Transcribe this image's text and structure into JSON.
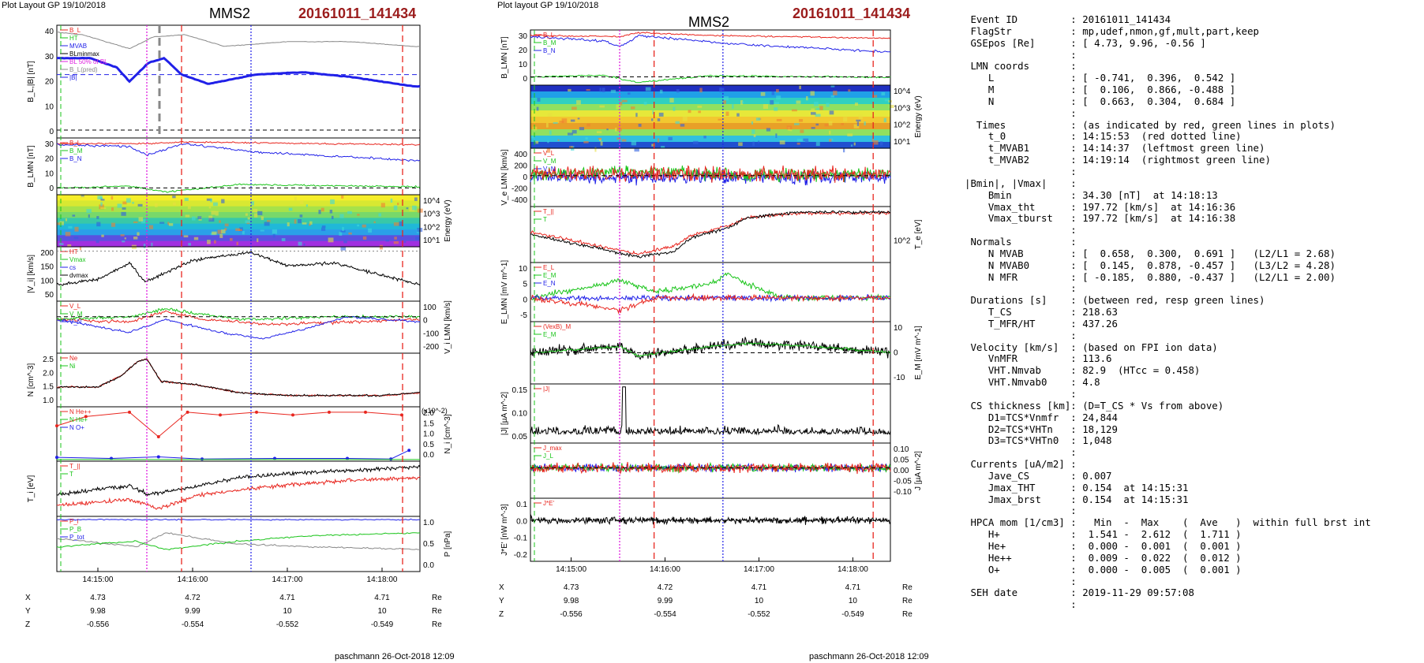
{
  "left": {
    "header": "Plot Layout GP 19/10/2018",
    "title": "MMS2",
    "event": "20161011_141434",
    "footer": "paschmann 26-Oct-2018 12:09",
    "panels": [
      {
        "ylabel": "B_L,|B| [nT]",
        "ticks": [
          "40",
          "30",
          "20",
          "10",
          "0"
        ],
        "legend": [
          "B_L",
          "HT",
          "MVAB",
          "BLminmax",
          "BL 50% of BL",
          "B_L(pred)",
          "|B|"
        ]
      },
      {
        "ylabel": "B_LMN [nT]",
        "ticks": [
          "30",
          "20",
          "10",
          "0"
        ],
        "legend": [
          "B_L",
          "B_M",
          "B_N"
        ]
      },
      {
        "ylabel": "Energy (eV)",
        "ticks": [
          "10^4",
          "10^3",
          "10^2",
          "10^1"
        ],
        "legend": []
      },
      {
        "ylabel": "|V_i| [km/s]",
        "ticks": [
          "200",
          "150",
          "100",
          "50"
        ],
        "legend": [
          "HT",
          "Vmax",
          "cs",
          "dvmax"
        ]
      },
      {
        "ylabel": "V_i LMN [km/s]",
        "ticks": [
          "100",
          "0",
          "-100",
          "-200"
        ],
        "legend": [
          "V_L",
          "V_M",
          "V_N"
        ]
      },
      {
        "ylabel": "N [cm^-3]",
        "ticks": [
          "2.5",
          "2.0",
          "1.5",
          "1.0"
        ],
        "legend": [
          "Ne",
          "Ni"
        ]
      },
      {
        "ylabel": "N_i [cm^-3]",
        "ticks": [
          "2.0",
          "1.5",
          "1.0",
          "0.5",
          "0.0"
        ],
        "legend": [
          "N He++",
          "N He+",
          "N O+"
        ],
        "exp": "(x10^-2)"
      },
      {
        "ylabel": "T_i [eV]",
        "ticks": [],
        "legend": [
          "T_||",
          "T"
        ]
      },
      {
        "ylabel": "P [nPa]",
        "ticks": [
          "1.0",
          "0.5",
          "0.0"
        ],
        "legend": [
          "P_i",
          "P_B",
          "P_tot"
        ]
      }
    ],
    "time_ticks": [
      "14:15:00",
      "14:16:00",
      "14:17:00",
      "14:18:00"
    ],
    "pos_table": {
      "rows": [
        {
          "label": "X",
          "values": [
            "4.73",
            "4.72",
            "4.71",
            "4.71"
          ],
          "unit": "Re"
        },
        {
          "label": "Y",
          "values": [
            "9.98",
            "9.99",
            "10",
            "10"
          ],
          "unit": "Re"
        },
        {
          "label": "Z",
          "values": [
            "-0.556",
            "-0.554",
            "-0.552",
            "-0.549"
          ],
          "unit": "Re"
        }
      ]
    }
  },
  "right": {
    "header": "Plot layout GP 19/10/2018",
    "title": "MMS2",
    "event": "20161011_141434",
    "footer": "paschmann 26-Oct-2018 12:09",
    "panels": [
      {
        "ylabel": "B_LMN [nT]",
        "ticks": [
          "30",
          "20",
          "10",
          "0"
        ],
        "legend": [
          "B_L",
          "B_M",
          "B_N"
        ]
      },
      {
        "ylabel": "Energy (eV)",
        "ticks": [
          "10^4",
          "10^3",
          "10^2",
          "10^1"
        ],
        "legend": []
      },
      {
        "ylabel": "V_e LMN [km/s]",
        "ticks": [
          "400",
          "200",
          "0",
          "-200",
          "-400"
        ],
        "legend": [
          "V_L",
          "V_M",
          "V_N"
        ]
      },
      {
        "ylabel": "T_e [eV]",
        "ticks": [
          "10^2"
        ],
        "legend": [
          "T_||",
          "T"
        ]
      },
      {
        "ylabel": "E_LMN [mV m^-1]",
        "ticks": [
          "10",
          "5",
          "0",
          "-5"
        ],
        "legend": [
          "E_L",
          "E_M",
          "E_N"
        ]
      },
      {
        "ylabel": "E_M [mV m^-1]",
        "ticks": [
          "10",
          "0",
          "-10"
        ],
        "legend": [
          "(VexB)_M",
          "E_M"
        ]
      },
      {
        "ylabel": "|J| [µA m^-2]",
        "ticks": [
          "0.15",
          "0.10",
          "0.05"
        ],
        "legend": [
          "|J|"
        ]
      },
      {
        "ylabel": "J [µA m^-2]",
        "ticks": [
          "0.10",
          "0.05",
          "0.00",
          "-0.05",
          "-0.10"
        ],
        "legend": [
          "J_max",
          "J_L"
        ]
      },
      {
        "ylabel": "J*E' [nW m^-3]",
        "ticks": [
          "0.1",
          "0.0",
          "-0.1",
          "-0.2"
        ],
        "legend": [
          "J*E'"
        ]
      }
    ],
    "time_ticks": [
      "14:15:00",
      "14:16:00",
      "14:17:00",
      "14:18:00"
    ],
    "pos_table": {
      "rows": [
        {
          "label": "X",
          "values": [
            "4.73",
            "4.72",
            "4.71",
            "4.71"
          ],
          "unit": "Re"
        },
        {
          "label": "Y",
          "values": [
            "9.98",
            "9.99",
            "10",
            "10"
          ],
          "unit": "Re"
        },
        {
          "label": "Z",
          "values": [
            "-0.556",
            "-0.554",
            "-0.552",
            "-0.549"
          ],
          "unit": "Re"
        }
      ]
    }
  },
  "info_lines": [
    " Event ID         : 20161011_141434",
    " FlagStr          : mp,udef,nmon,gf,mult,part,keep",
    " GSEpos [Re]      : [ 4.73, 9.96, -0.56 ]",
    "                  :",
    " LMN coords       :",
    "    L             : [ -0.741,  0.396,  0.542 ]",
    "    M             : [  0.106,  0.866, -0.488 ]",
    "    N             : [  0.663,  0.304,  0.684 ]",
    "                  :",
    "  Times           : (as indicated by red, green lines in plots)",
    "    t_0           : 14:15:53  (red dotted line)",
    "    t_MVAB1       : 14:14:37  (leftmost green line)",
    "    t_MVAB2       : 14:19:14  (rightmost green line)",
    "                  :",
    "|Bmin|, |Vmax|    :",
    "    Bmin          : 34.30 [nT]  at 14:18:13",
    "    Vmax_tht      : 197.72 [km/s]  at 14:16:36",
    "    Vmax_tburst   : 197.72 [km/s]  at 14:16:38",
    "                  :",
    " Normals          :",
    "    N MVAB        : [  0.658,  0.300,  0.691 ]   (L2/L1 = 2.68)",
    "    N MVAB0       : [  0.145,  0.878, -0.457 ]   (L3/L2 = 4.28)",
    "    N MFR         : [ -0.185,  0.880, -0.437 ]   (L2/L1 = 2.00)",
    "                  :",
    " Durations [s]    : (between red, resp green lines)",
    "    T_CS          : 218.63",
    "    T_MFR/HT      : 437.26",
    "                  :",
    " Velocity [km/s]  : (based on FPI ion data)",
    "    VnMFR         : 113.6",
    "    VHT.Nmvab     : 82.9  (HTcc = 0.458)",
    "    VHT.Nmvab0    : 4.8",
    "                  :",
    " CS thickness [km]: (D=T_CS * Vs from above)",
    "    D1=TCS*Vnmfr  : 24,844",
    "    D2=TCS*VHTn   : 18,129",
    "    D3=TCS*VHTn0  : 1,048",
    "                  :",
    " Currents [uA/m2] :",
    "    Jave_CS       : 0.007",
    "    Jmax_THT      : 0.154  at 14:15:31",
    "    Jmax_brst     : 0.154  at 14:15:31",
    "                  :",
    " HPCA mom [1/cm3] :   Min  -  Max    (  Ave   )  within full brst int",
    "    H+            :  1.541 -  2.612  (  1.711 )",
    "    He+           :  0.000 -  0.001  (  0.001 )",
    "    He++          :  0.009 -  0.022  (  0.012 )",
    "    O+            :  0.000 -  0.005  (  0.001 )",
    "                  :",
    " SEH date         : 2019-11-29 09:57:08",
    "                  :"
  ],
  "colors": {
    "red": "#e8261f",
    "green": "#19c419",
    "blue": "#2020e8",
    "black": "#000000",
    "magenta": "#e020e0",
    "gray": "#888888",
    "eventRed": "#9b1c1c"
  },
  "chart_data": [
    {
      "type": "line",
      "title": "MMS2",
      "xlabel": "",
      "x_ticks": [
        "14:15:00",
        "14:16:00",
        "14:17:00",
        "14:18:00"
      ],
      "time_start": "14:14:34",
      "time_end": "14:18:24",
      "markers": {
        "t_0": "14:15:53",
        "magenta_dotted": "14:15:31",
        "blue_dotted": "14:16:37",
        "right_red_dashed": "14:18:13"
      },
      "series": [
        {
          "name": "|B|",
          "panel": 0,
          "times": [
            "14:14:34",
            "14:14:50",
            "14:15:10",
            "14:15:20",
            "14:15:35",
            "14:15:55",
            "14:16:20",
            "14:17:00",
            "14:17:40",
            "14:18:20"
          ],
          "values": [
            42,
            41,
            37,
            35,
            40,
            41,
            36,
            38,
            38,
            36
          ]
        },
        {
          "name": "B_L",
          "panel": 0,
          "times": [
            "14:14:34",
            "14:14:55",
            "14:15:12",
            "14:15:20",
            "14:15:32",
            "14:15:42",
            "14:15:53",
            "14:16:10",
            "14:16:40",
            "14:17:10",
            "14:17:40",
            "14:18:20"
          ],
          "values": [
            31,
            31,
            27,
            21,
            29,
            31,
            24,
            20,
            24,
            25,
            23,
            19
          ]
        },
        {
          "name": "Ni",
          "panel": 5,
          "times": [
            "14:14:34",
            "14:15:00",
            "14:15:15",
            "14:15:25",
            "14:15:31",
            "14:15:40",
            "14:16:00",
            "14:16:30",
            "14:17:00",
            "14:18:00",
            "14:18:24"
          ],
          "values": [
            1.5,
            1.5,
            1.9,
            2.4,
            2.5,
            1.7,
            1.6,
            1.3,
            1.2,
            1.2,
            1.3
          ]
        },
        {
          "name": "|Vi|",
          "panel": 3,
          "times": [
            "14:14:34",
            "14:15:00",
            "14:15:20",
            "14:15:30",
            "14:16:00",
            "14:16:37",
            "14:17:00",
            "14:17:30",
            "14:18:24"
          ],
          "values": [
            70,
            90,
            150,
            80,
            160,
            190,
            140,
            150,
            70
          ]
        }
      ]
    }
  ]
}
